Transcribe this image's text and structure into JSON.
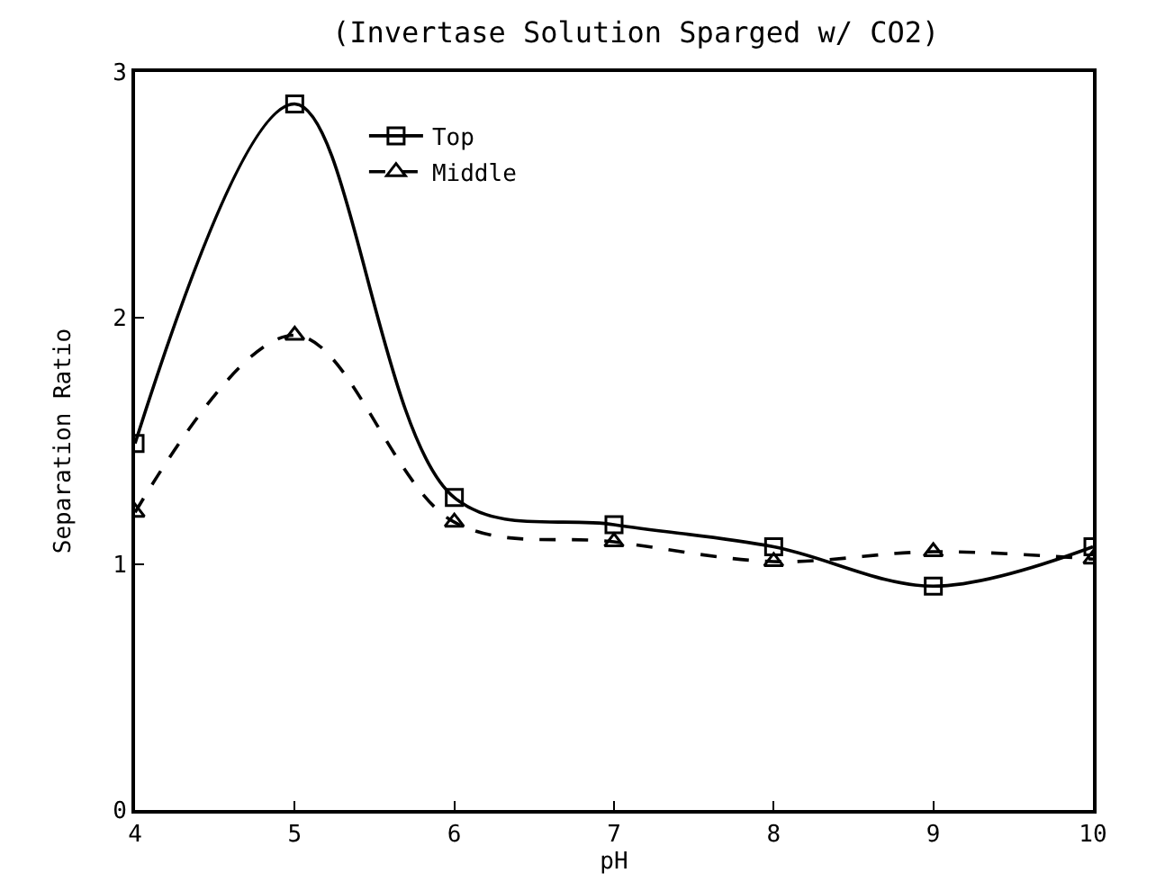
{
  "chart_data": {
    "type": "line",
    "title": "(Invertase Solution Sparged w/ CO2)",
    "xlabel": "pH",
    "ylabel": "Separation Ratio",
    "x": [
      4,
      5,
      6,
      7,
      8,
      9,
      10
    ],
    "series": [
      {
        "name": "Top",
        "color": "#000000",
        "marker": "square",
        "line_style": "solid",
        "values": [
          1.49,
          2.87,
          1.27,
          1.16,
          1.07,
          0.91,
          1.07
        ]
      },
      {
        "name": "Middle",
        "color": "#000000",
        "marker": "triangle",
        "line_style": "dashed",
        "values": [
          1.21,
          1.93,
          1.17,
          1.09,
          1.01,
          1.05,
          1.02
        ]
      }
    ],
    "xlim": [
      4,
      10
    ],
    "xticks": [
      4,
      5,
      6,
      7,
      8,
      9,
      10
    ],
    "ylim": [
      0,
      3
    ],
    "yticks": [
      0,
      1,
      2,
      3
    ],
    "grid": false,
    "legend": "top"
  }
}
